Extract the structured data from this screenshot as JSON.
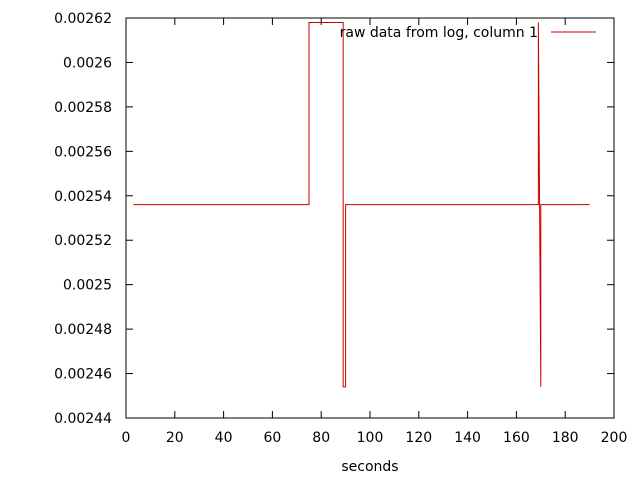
{
  "chart_data": {
    "type": "line",
    "title": "",
    "xlabel": "seconds",
    "ylabel": "",
    "xlim": [
      0,
      200
    ],
    "ylim": [
      0.00244,
      0.00262
    ],
    "x_ticks": [
      "0",
      "20",
      "40",
      "60",
      "80",
      "100",
      "120",
      "140",
      "160",
      "180",
      "200"
    ],
    "y_ticks": [
      "0.00244",
      "0.00246",
      "0.00248",
      "0.0025",
      "0.00252",
      "0.00254",
      "0.00256",
      "0.00258",
      "0.0026",
      "0.00262"
    ],
    "grid": false,
    "legend_position": "top-right",
    "series": [
      {
        "name": "raw data from log, column 1",
        "color": "#cc0000",
        "x": [
          3,
          75,
          75,
          89,
          89,
          90,
          90,
          169,
          169,
          170,
          170,
          190
        ],
        "y": [
          0.002536,
          0.002536,
          0.002618,
          0.002618,
          0.002454,
          0.002454,
          0.002536,
          0.002536,
          0.002618,
          0.002454,
          0.002536,
          0.002536
        ]
      }
    ]
  }
}
